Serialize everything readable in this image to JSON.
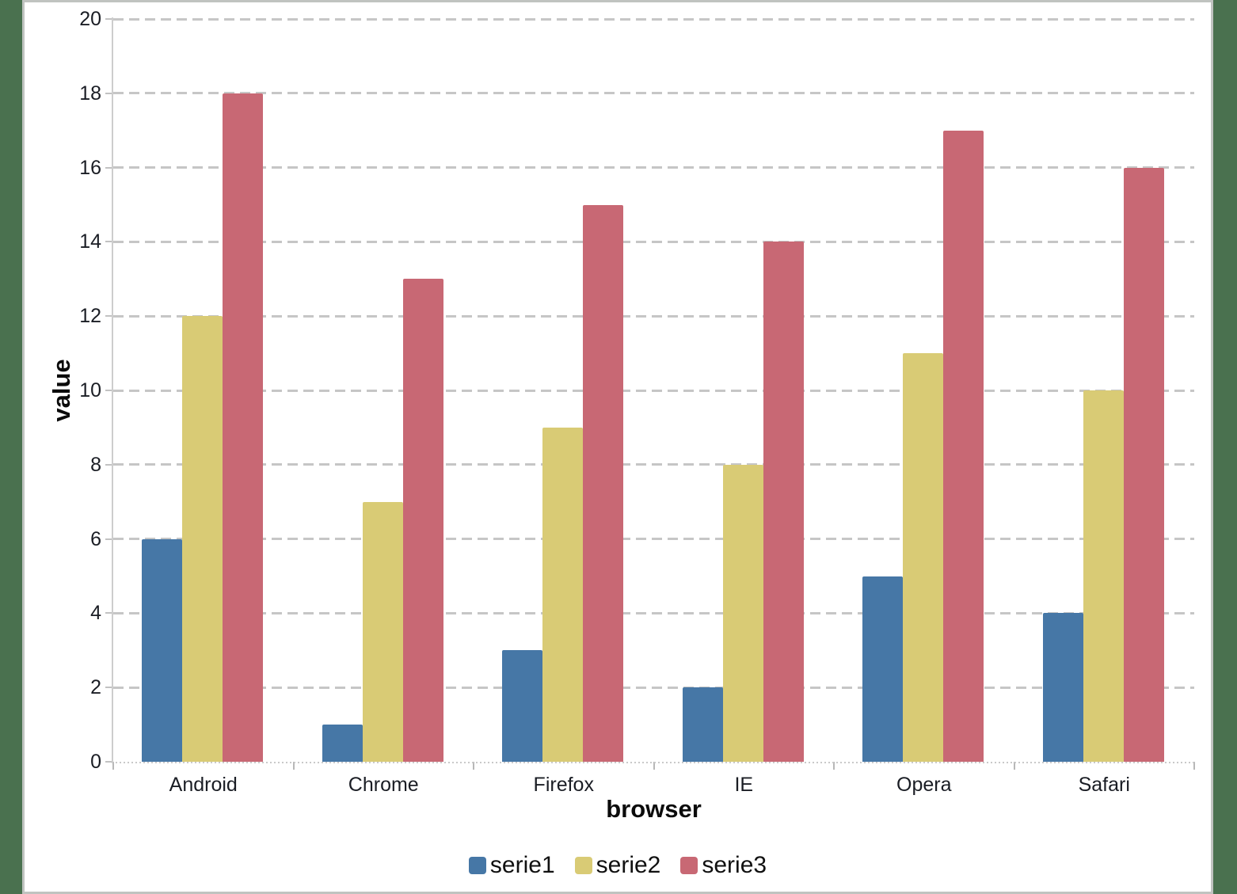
{
  "colors": {
    "background": "#4a714f",
    "panel_background": "#ffffff",
    "panel_border": "#c0c3c0",
    "gridline": "#c6c6c6",
    "axis_line": "#c9c9c9",
    "tick_text": "#1a1d24",
    "axis_title_text": "#0b0b0b",
    "legend_text": "#101010"
  },
  "chart_data": {
    "type": "bar",
    "xlabel": "browser",
    "ylabel": "value",
    "categories": [
      "Android",
      "Chrome",
      "Firefox",
      "IE",
      "Opera",
      "Safari"
    ],
    "series": [
      {
        "name": "serie1",
        "color": "#4677a6",
        "values": [
          6,
          1,
          3,
          2,
          5,
          4
        ]
      },
      {
        "name": "serie2",
        "color": "#d9cb75",
        "values": [
          12,
          7,
          9,
          8,
          11,
          10
        ]
      },
      {
        "name": "serie3",
        "color": "#c86874",
        "values": [
          18,
          13,
          15,
          14,
          17,
          16
        ]
      }
    ],
    "ylim": [
      0,
      20
    ],
    "ytick_step": 2,
    "yticks": [
      "0",
      "2",
      "4",
      "6",
      "8",
      "10",
      "12",
      "14",
      "16",
      "18",
      "20"
    ],
    "grid": "horizontal-dashed",
    "legend_position": "bottom"
  }
}
